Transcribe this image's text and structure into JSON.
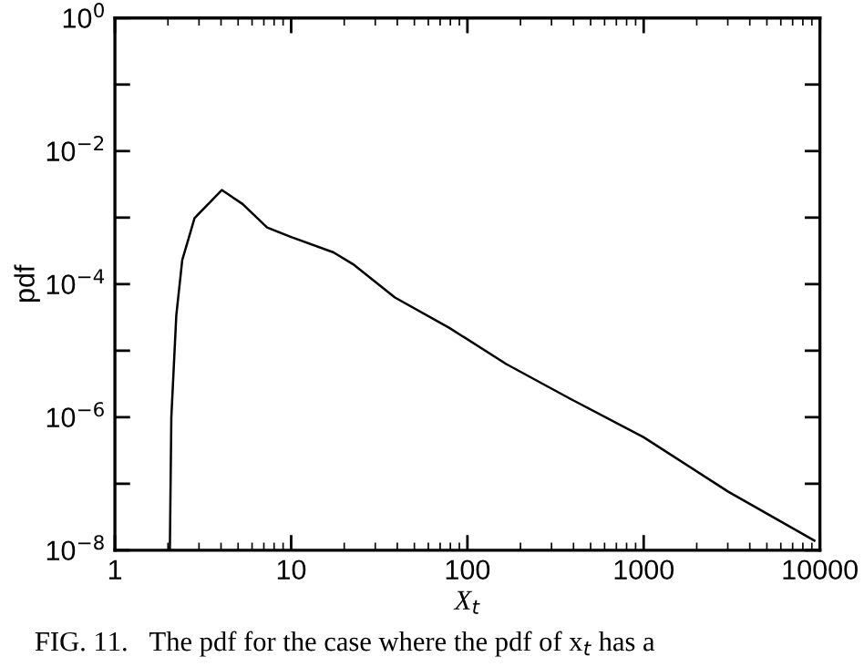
{
  "chart_data": {
    "type": "line",
    "xlabel": "X$_{t}$",
    "ylabel": "pdf",
    "log": "xy",
    "annotations": [
      "FIG. 11.   The pdf for the case where the pdf of x$_{t}$ has a"
    ],
    "x": [
      2.05,
      2.09,
      2.23,
      2.41,
      2.83,
      4.04,
      5.3,
      7.3,
      10,
      17.4,
      22.4,
      38.8,
      79,
      166,
      382,
      1000,
      3020,
      9300
    ],
    "values": [
      1e-08,
      1e-06,
      3.4e-05,
      0.00023,
      0.00098,
      0.0026,
      0.0016,
      0.00071,
      0.00051,
      0.0003,
      0.0002,
      6.3e-05,
      2.2e-05,
      6.3e-06,
      1.9e-06,
      5e-07,
      7.6e-08,
      1.4e-08
    ],
    "color": "#000000",
    "marker": "none",
    "line_style": "solid",
    "grid": false,
    "xlim": [
      1,
      10000
    ],
    "ylim": [
      1e-08,
      1
    ],
    "xticks": [
      1,
      10,
      100,
      1000,
      10000
    ],
    "yticks": [
      {
        "value": 1e-08,
        "label": "10$^{−8}$"
      },
      {
        "value": 1e-07,
        "label": null
      },
      {
        "value": 1e-06,
        "label": "10$^{−6}$"
      },
      {
        "value": 1e-05,
        "label": null
      },
      {
        "value": 0.0001,
        "label": "10$^{−4}$"
      },
      {
        "value": 0.001,
        "label": null
      },
      {
        "value": 0.01,
        "label": "10$^{−2}$"
      },
      {
        "value": 0.1,
        "label": null
      },
      {
        "value": 1,
        "label": "10$^{0}$"
      }
    ]
  }
}
